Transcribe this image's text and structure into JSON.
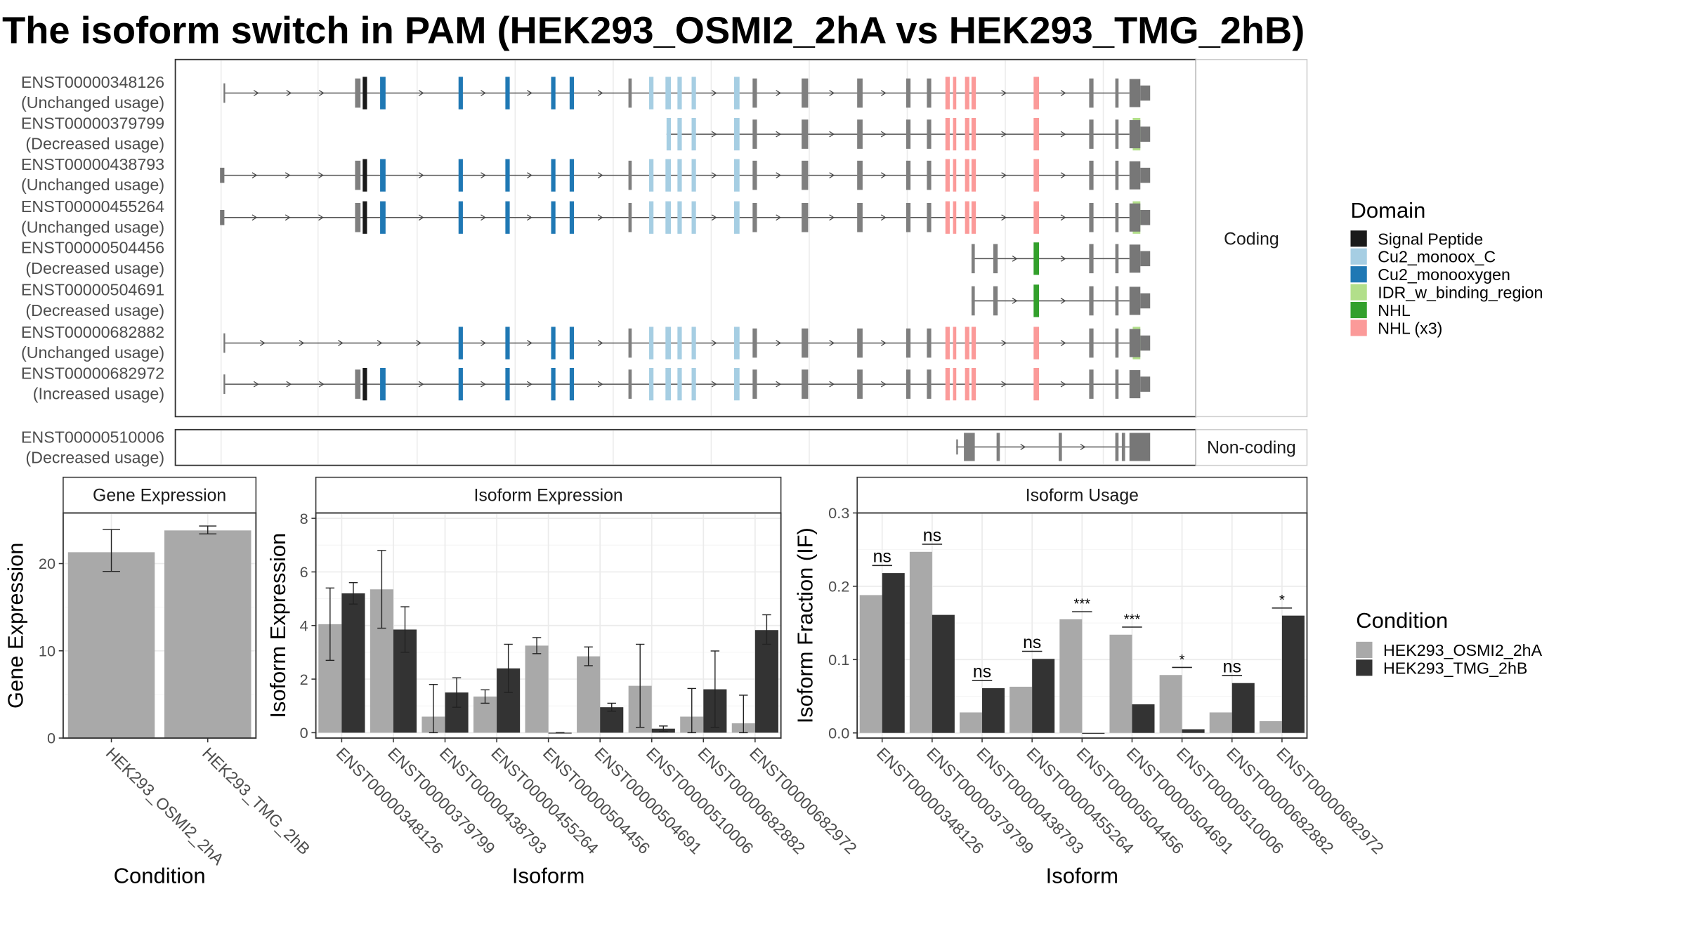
{
  "title": "The isoform switch in PAM (HEK293_OSMI2_2hA vs HEK293_TMG_2hB)",
  "structure": {
    "facet_labels": [
      "Coding",
      "Non-coding"
    ],
    "coding_isoforms": [
      {
        "id": "ENST00000348126",
        "usage": "(Unchanged usage)"
      },
      {
        "id": "ENST00000379799",
        "usage": "(Decreased usage)"
      },
      {
        "id": "ENST00000438793",
        "usage": "(Unchanged usage)"
      },
      {
        "id": "ENST00000455264",
        "usage": "(Unchanged usage)"
      },
      {
        "id": "ENST00000504456",
        "usage": "(Decreased usage)"
      },
      {
        "id": "ENST00000504691",
        "usage": "(Decreased usage)"
      },
      {
        "id": "ENST00000682882",
        "usage": "(Unchanged usage)"
      },
      {
        "id": "ENST00000682972",
        "usage": "(Increased usage)"
      }
    ],
    "noncoding_isoforms": [
      {
        "id": "ENST00000510006",
        "usage": "(Decreased usage)"
      }
    ]
  },
  "domain_legend": {
    "title": "Domain",
    "items": [
      {
        "label": "Signal Peptide",
        "color": "#1a1a1a"
      },
      {
        "label": "Cu2_monoox_C",
        "color": "#a6cee3"
      },
      {
        "label": "Cu2_monooxygen",
        "color": "#1f78b4"
      },
      {
        "label": "IDR_w_binding_region",
        "color": "#b2df8a"
      },
      {
        "label": "NHL",
        "color": "#33a02c"
      },
      {
        "label": "NHL (x3)",
        "color": "#fb9a99"
      }
    ]
  },
  "condition_legend": {
    "title": "Condition",
    "items": [
      {
        "label": "HEK293_OSMI2_2hA",
        "color": "#a9a9a9"
      },
      {
        "label": "HEK293_TMG_2hB",
        "color": "#333333"
      }
    ]
  },
  "chart_data": [
    {
      "type": "bar",
      "title": "Gene Expression",
      "xlabel": "Condition",
      "ylabel": "Gene Expression",
      "categories": [
        "HEK293_OSMI2_2hA",
        "HEK293_TMG_2hB"
      ],
      "values": [
        21.3,
        23.8
      ],
      "error_low": [
        19.1,
        23.4
      ],
      "error_high": [
        23.9,
        24.3
      ],
      "yticks": [
        0,
        10,
        20
      ],
      "ylim": [
        0,
        25.8
      ]
    },
    {
      "type": "bar",
      "title": "Isoform Expression",
      "xlabel": "Isoform",
      "ylabel": "Isoform Expression",
      "categories": [
        "ENST00000348126",
        "ENST00000379799",
        "ENST00000438793",
        "ENST00000455264",
        "ENST00000504456",
        "ENST00000504691",
        "ENST00000510006",
        "ENST00000682882",
        "ENST00000682972"
      ],
      "series": [
        {
          "name": "HEK293_OSMI2_2hA",
          "values": [
            4.05,
            5.35,
            0.6,
            1.35,
            3.25,
            2.85,
            1.75,
            0.6,
            0.35
          ],
          "error_low": [
            2.7,
            3.9,
            0.0,
            1.1,
            2.95,
            2.5,
            0.2,
            0.0,
            0.0
          ],
          "error_high": [
            5.4,
            6.8,
            1.8,
            1.6,
            3.55,
            3.2,
            3.3,
            1.65,
            1.4
          ]
        },
        {
          "name": "HEK293_TMG_2hB",
          "values": [
            5.2,
            3.85,
            1.5,
            2.4,
            0.0,
            0.95,
            0.15,
            1.62,
            3.83
          ],
          "error_low": [
            4.8,
            3.0,
            0.95,
            1.5,
            0.0,
            0.8,
            0.05,
            0.2,
            3.3
          ],
          "error_high": [
            5.6,
            4.7,
            2.05,
            3.3,
            0.0,
            1.1,
            0.25,
            3.05,
            4.4
          ]
        }
      ],
      "yticks": [
        0,
        2,
        4,
        6,
        8
      ],
      "ylim": [
        -0.2,
        8.2
      ]
    },
    {
      "type": "bar",
      "title": "Isoform Usage",
      "xlabel": "Isoform",
      "ylabel": "Isoform Fraction (IF)",
      "categories": [
        "ENST00000348126",
        "ENST00000379799",
        "ENST00000438793",
        "ENST00000455264",
        "ENST00000504456",
        "ENST00000504691",
        "ENST00000510006",
        "ENST00000682882",
        "ENST00000682972"
      ],
      "series": [
        {
          "name": "HEK293_OSMI2_2hA",
          "values": [
            0.188,
            0.247,
            0.028,
            0.063,
            0.155,
            0.134,
            0.079,
            0.028,
            0.016
          ]
        },
        {
          "name": "HEK293_TMG_2hB",
          "values": [
            0.218,
            0.161,
            0.061,
            0.101,
            0.0,
            0.039,
            0.005,
            0.068,
            0.16
          ]
        }
      ],
      "significance": [
        "ns",
        "ns",
        "ns",
        "ns",
        "***",
        "***",
        "*",
        "ns",
        "*"
      ],
      "yticks": [
        0.0,
        0.1,
        0.2,
        0.3
      ],
      "ylim": [
        -0.007,
        0.3
      ]
    }
  ]
}
